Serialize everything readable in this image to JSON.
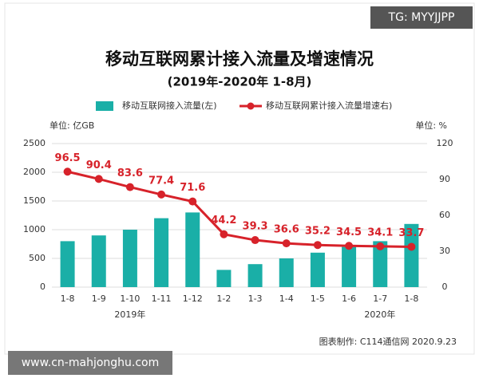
{
  "watermark": "TG: MYYJJPP",
  "url": "www.cn-mahjonghu.com",
  "chart_data": {
    "type": "bar",
    "title": "移动互联网累计接入流量及增速情况",
    "subtitle": "(2019年-2020年 1-8月)",
    "y_unit": "单位: 亿GB",
    "y2_unit": "单位: %",
    "source": "图表制作: C114通信网 2020.9.23",
    "categories": [
      "1-8",
      "1-9",
      "1-10",
      "1-11",
      "1-12",
      "1-2",
      "1-3",
      "1-4",
      "1-5",
      "1-6",
      "1-7",
      "1-8"
    ],
    "year_labels": [
      "2019年",
      "2020年"
    ],
    "series": [
      {
        "name": "移动互联网接入流量(左)",
        "type": "bar",
        "color": "#1aafa7",
        "values": [
          800,
          900,
          1000,
          1200,
          1300,
          300,
          400,
          500,
          600,
          700,
          800,
          1100
        ]
      },
      {
        "name": "移动互联网累计接入流量增速右)",
        "type": "line",
        "axis": "y2",
        "color": "#d7222a",
        "values": [
          96.5,
          90.4,
          83.6,
          77.4,
          71.6,
          44.2,
          39.3,
          36.6,
          35.2,
          34.5,
          34.1,
          33.7
        ]
      }
    ],
    "ylim": [
      0,
      2500
    ],
    "yticks": [
      0,
      500,
      1000,
      1500,
      2000,
      2500
    ],
    "y2lim": [
      0,
      120
    ],
    "y2ticks": [
      0,
      30,
      60,
      90,
      120
    ],
    "grid": true
  }
}
